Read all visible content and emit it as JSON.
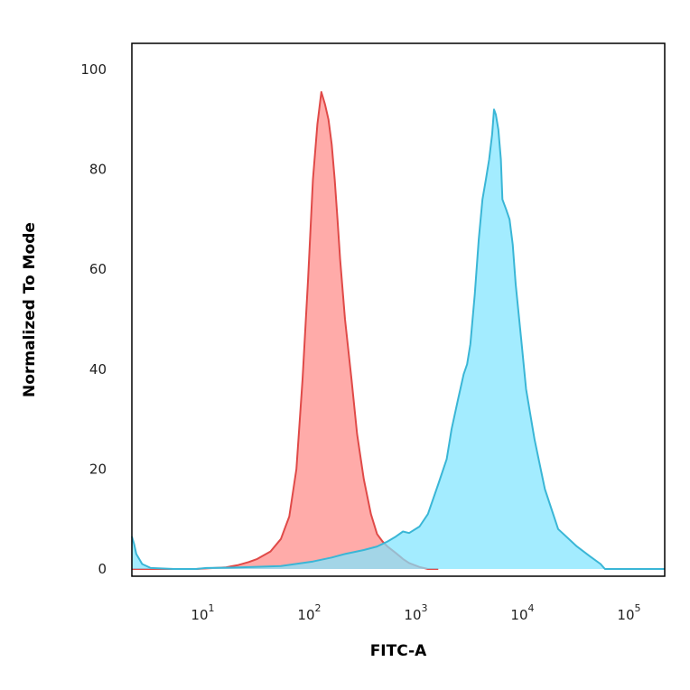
{
  "chart_data": {
    "type": "area",
    "title": "",
    "xlabel": "FITC-A",
    "ylabel": "Normalized To Mode",
    "xscale": "log",
    "xlim": [
      2,
      200000
    ],
    "ylim": [
      0,
      104
    ],
    "grid": false,
    "legend": "none",
    "x_ticks": [
      {
        "value": 10,
        "base": "10",
        "exp": "1"
      },
      {
        "value": 100,
        "base": "10",
        "exp": "2"
      },
      {
        "value": 1000,
        "base": "10",
        "exp": "3"
      },
      {
        "value": 10000,
        "base": "10",
        "exp": "4"
      },
      {
        "value": 100000,
        "base": "10",
        "exp": "5"
      }
    ],
    "y_ticks": [
      {
        "value": 0,
        "label": "0"
      },
      {
        "value": 20,
        "label": "20"
      },
      {
        "value": 40,
        "label": "40"
      },
      {
        "value": 60,
        "label": "60"
      },
      {
        "value": 80,
        "label": "80"
      },
      {
        "value": 100,
        "label": "100"
      }
    ],
    "series": [
      {
        "color": "#e04a48",
        "fill": "#ff8a88",
        "x": [
          2,
          8,
          15,
          20,
          25,
          30,
          40,
          50,
          60,
          70,
          80,
          90,
          100,
          110,
          120,
          130,
          140,
          150,
          160,
          170,
          180,
          200,
          230,
          260,
          300,
          350,
          400,
          450,
          500,
          600,
          700,
          800,
          1000,
          1200,
          1500
        ],
        "y": [
          0,
          0,
          0.3,
          0.8,
          1.4,
          2.0,
          3.5,
          6.0,
          10.5,
          20.0,
          38.0,
          58.0,
          78.0,
          89.0,
          95.5,
          93.0,
          90.0,
          85.0,
          78.0,
          70.0,
          62.0,
          50.0,
          38.0,
          27.0,
          18.0,
          11.0,
          7.0,
          5.5,
          4.5,
          3.2,
          2.0,
          1.2,
          0.4,
          0,
          0
        ]
      },
      {
        "color": "#3ab6d6",
        "fill": "#80e4ff",
        "x": [
          2,
          2.1,
          2.2,
          2.5,
          3,
          5,
          8,
          10,
          20,
          50,
          100,
          150,
          200,
          300,
          400,
          500,
          600,
          700,
          800,
          1000,
          1200,
          1500,
          1800,
          2000,
          2300,
          2600,
          2800,
          3000,
          3300,
          3600,
          3900,
          4200,
          4500,
          4800,
          5000,
          5200,
          5500,
          5800,
          6000,
          6500,
          7000,
          7500,
          8000,
          9000,
          10000,
          12000,
          15000,
          20000,
          30000,
          40000,
          50000,
          55000,
          100000,
          200000
        ],
        "y": [
          6.5,
          5.0,
          3.0,
          1.0,
          0.2,
          0,
          0,
          0.2,
          0.3,
          0.6,
          1.5,
          2.3,
          3.0,
          3.8,
          4.5,
          5.5,
          6.5,
          7.5,
          7.2,
          8.5,
          11.0,
          17.0,
          22.0,
          28.0,
          34.0,
          39.0,
          41.0,
          45.0,
          55.0,
          66.0,
          74.0,
          78.0,
          82.0,
          87.0,
          92.0,
          91.0,
          88.0,
          82.0,
          74.0,
          72.0,
          70.0,
          65.0,
          57.0,
          46.0,
          36.0,
          26.0,
          16.0,
          8.0,
          4.5,
          2.5,
          1.0,
          0,
          0,
          0
        ]
      }
    ]
  }
}
